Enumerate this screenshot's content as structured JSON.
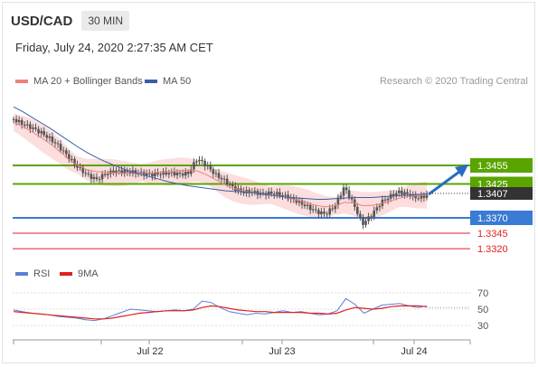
{
  "header": {
    "symbol": "USD/CAD",
    "timeframe": "30 MIN",
    "datetime": "Friday, July 24, 2020 2:27:35 AM CET"
  },
  "price_legend": {
    "ma20_label": "MA 20 + Bollinger Bands",
    "ma50_label": "MA 50",
    "copyright": "Research © 2020 Trading Central"
  },
  "rsi_legend": {
    "rsi_label": "RSI",
    "ma9_label": "9MA"
  },
  "colors": {
    "green": "#5aa400",
    "blue": "#3a7bd5",
    "red": "#e02020",
    "ma20": "#f08080",
    "ma50": "#3a5fa8",
    "band": "#fbd3d3",
    "candle": "#555555",
    "arrow": "#2a6cc4",
    "current": "#333333"
  },
  "chart_data": [
    {
      "type": "candlestick",
      "title": "USD/CAD",
      "x_ticks": [
        "Jul 22",
        "Jul 23",
        "Jul 24"
      ],
      "current_price": "1.3407",
      "levels": [
        {
          "value": 1.3455,
          "label": "1.3455",
          "kind": "resistance",
          "color": "#5aa400"
        },
        {
          "value": 1.3425,
          "label": "1.3425",
          "kind": "resistance",
          "color": "#5aa400"
        },
        {
          "value": 1.337,
          "label": "1.3370",
          "kind": "pivot",
          "color": "#3a7bd5"
        },
        {
          "value": 1.3345,
          "label": "1.3345",
          "kind": "support",
          "color": "#e02020"
        },
        {
          "value": 1.332,
          "label": "1.3320",
          "kind": "support",
          "color": "#e02020"
        }
      ],
      "close_path": [
        1.353,
        1.3522,
        1.3516,
        1.3508,
        1.3498,
        1.3485,
        1.3468,
        1.3452,
        1.344,
        1.3432,
        1.3441,
        1.3446,
        1.3445,
        1.3444,
        1.3442,
        1.344,
        1.3442,
        1.3443,
        1.3441,
        1.3442,
        1.3466,
        1.3455,
        1.344,
        1.343,
        1.3418,
        1.3412,
        1.3412,
        1.3409,
        1.341,
        1.3408,
        1.3403,
        1.3396,
        1.3388,
        1.338,
        1.3376,
        1.339,
        1.342,
        1.3393,
        1.336,
        1.3375,
        1.3395,
        1.3405,
        1.3412,
        1.3408,
        1.3402,
        1.3407
      ],
      "ma20": [
        1.3525,
        1.3518,
        1.351,
        1.35,
        1.349,
        1.3478,
        1.3465,
        1.3455,
        1.3448,
        1.3445,
        1.3444,
        1.3443,
        1.3442,
        1.3442,
        1.3443,
        1.3443,
        1.3444,
        1.3444,
        1.3446,
        1.3447,
        1.3446,
        1.344,
        1.3432,
        1.3424,
        1.3418,
        1.3414,
        1.3411,
        1.3409,
        1.3407,
        1.3405,
        1.3402,
        1.3398,
        1.3394,
        1.339,
        1.3388,
        1.3389,
        1.3395,
        1.3394,
        1.339,
        1.339,
        1.3393,
        1.3397,
        1.3402,
        1.3405,
        1.3406,
        1.3407
      ],
      "ma50": [
        1.355,
        1.3542,
        1.3533,
        1.3524,
        1.3515,
        1.3505,
        1.3495,
        1.3485,
        1.3476,
        1.3468,
        1.3461,
        1.3455,
        1.3449,
        1.3444,
        1.344,
        1.3436,
        1.3432,
        1.3428,
        1.3425,
        1.3422,
        1.342,
        1.3418,
        1.3416,
        1.3414,
        1.3413,
        1.3412,
        1.3411,
        1.3409,
        1.3407,
        1.3405,
        1.3403,
        1.3402,
        1.3401,
        1.34,
        1.34,
        1.3401,
        1.3402,
        1.3403,
        1.3403,
        1.3403,
        1.3404,
        1.3405,
        1.3406,
        1.3407,
        1.3408,
        1.3409
      ]
    },
    {
      "type": "line",
      "title": "RSI",
      "y_ticks": [
        "70",
        "50",
        "30"
      ],
      "ylim": [
        20,
        80
      ],
      "series": [
        {
          "name": "RSI",
          "color": "#5b7fd6",
          "values": [
            49,
            47,
            45,
            44,
            43,
            41,
            40,
            39,
            37,
            36,
            38,
            42,
            46,
            50,
            49,
            48,
            47,
            48,
            49,
            48,
            50,
            60,
            58,
            52,
            47,
            45,
            43,
            45,
            44,
            46,
            48,
            46,
            47,
            45,
            43,
            44,
            48,
            63,
            56,
            45,
            50,
            55,
            56,
            57,
            54,
            52,
            54
          ]
        },
        {
          "name": "9MA",
          "color": "#e02020",
          "values": [
            47,
            46,
            45,
            44,
            43,
            42,
            41,
            40,
            39,
            38,
            38,
            39,
            41,
            43,
            45,
            46,
            47,
            48,
            48,
            48,
            49,
            52,
            54,
            53,
            51,
            49,
            48,
            47,
            47,
            46,
            46,
            46,
            46,
            45,
            45,
            44,
            45,
            49,
            52,
            51,
            50,
            51,
            53,
            54,
            54,
            54,
            53
          ]
        }
      ]
    }
  ]
}
